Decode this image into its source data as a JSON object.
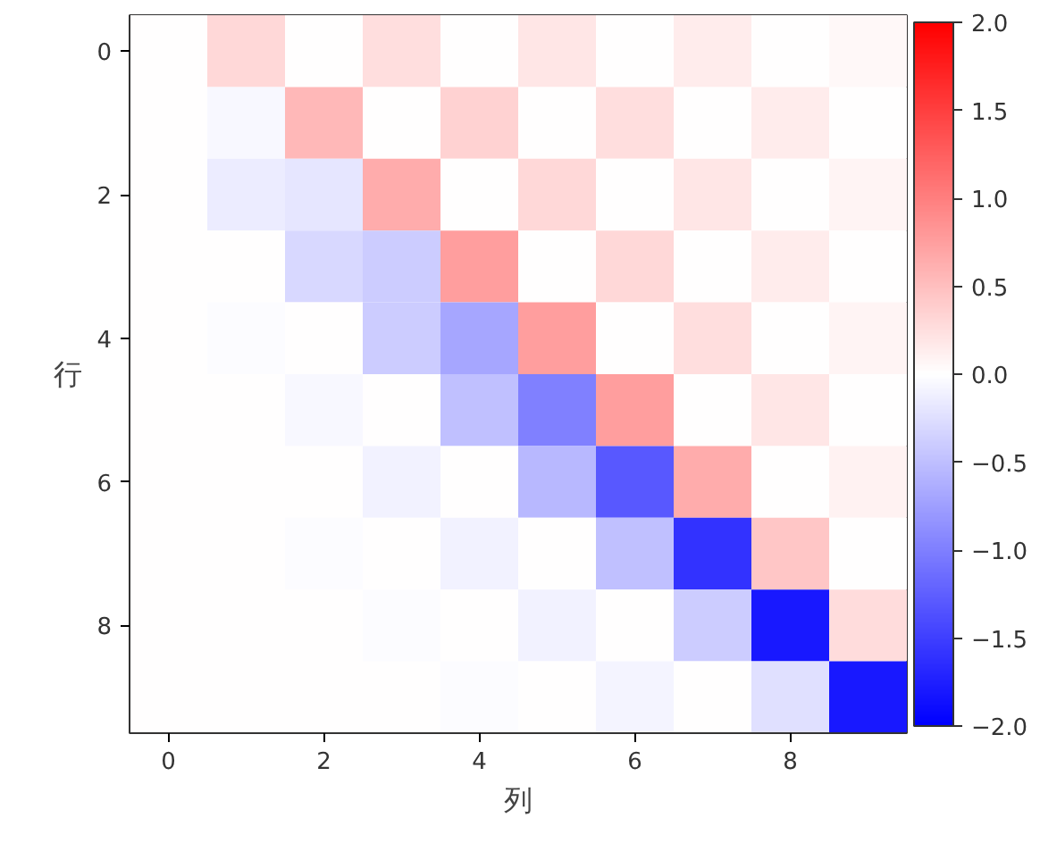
{
  "chart_data": {
    "type": "heatmap",
    "xlabel": "列",
    "ylabel": "行",
    "categories": [
      "0",
      null,
      "2",
      null,
      "4",
      null,
      "6",
      null,
      "8",
      null
    ],
    "y_categories": [
      "0",
      null,
      "2",
      null,
      "4",
      null,
      "6",
      null,
      "8",
      null
    ],
    "cells": [
      [
        0,
        0.3,
        0,
        0.25,
        0,
        0.2,
        0,
        0.15,
        0,
        0.05
      ],
      [
        0,
        -0.05,
        0.55,
        0,
        0.35,
        0,
        0.25,
        0,
        0.15,
        0
      ],
      [
        0,
        -0.15,
        -0.2,
        0.65,
        0,
        0.3,
        0,
        0.2,
        0,
        0.08
      ],
      [
        0,
        0,
        -0.3,
        -0.4,
        0.75,
        0,
        0.3,
        0,
        0.15,
        0
      ],
      [
        0,
        -0.02,
        0,
        -0.4,
        -0.7,
        0.75,
        0,
        0.25,
        0,
        0.08
      ],
      [
        0,
        0,
        -0.06,
        0,
        -0.5,
        -1.0,
        0.75,
        0,
        0.2,
        0
      ],
      [
        0,
        0,
        0,
        -0.1,
        0,
        -0.55,
        -1.3,
        0.65,
        0,
        0.1
      ],
      [
        0,
        0,
        -0.02,
        0,
        -0.1,
        0,
        -0.5,
        -1.6,
        0.45,
        0
      ],
      [
        0,
        0,
        0,
        -0.03,
        0,
        -0.1,
        0,
        -0.4,
        -1.8,
        0.28
      ],
      [
        0,
        0,
        0,
        0,
        -0.02,
        0,
        -0.08,
        0,
        -0.25,
        -1.8
      ]
    ],
    "clim": [
      -2.0,
      2.0
    ],
    "cticks": [
      {
        "value": -2.0,
        "label": "−2.0"
      },
      {
        "value": -1.5,
        "label": "−1.5"
      },
      {
        "value": -1.0,
        "label": "−1.0"
      },
      {
        "value": -0.5,
        "label": "−0.5"
      },
      {
        "value": 0.0,
        "label": "0.0"
      },
      {
        "value": 0.5,
        "label": "0.5"
      },
      {
        "value": 1.0,
        "label": "1.0"
      },
      {
        "value": 1.5,
        "label": "1.5"
      },
      {
        "value": 2.0,
        "label": "2.0"
      }
    ]
  }
}
